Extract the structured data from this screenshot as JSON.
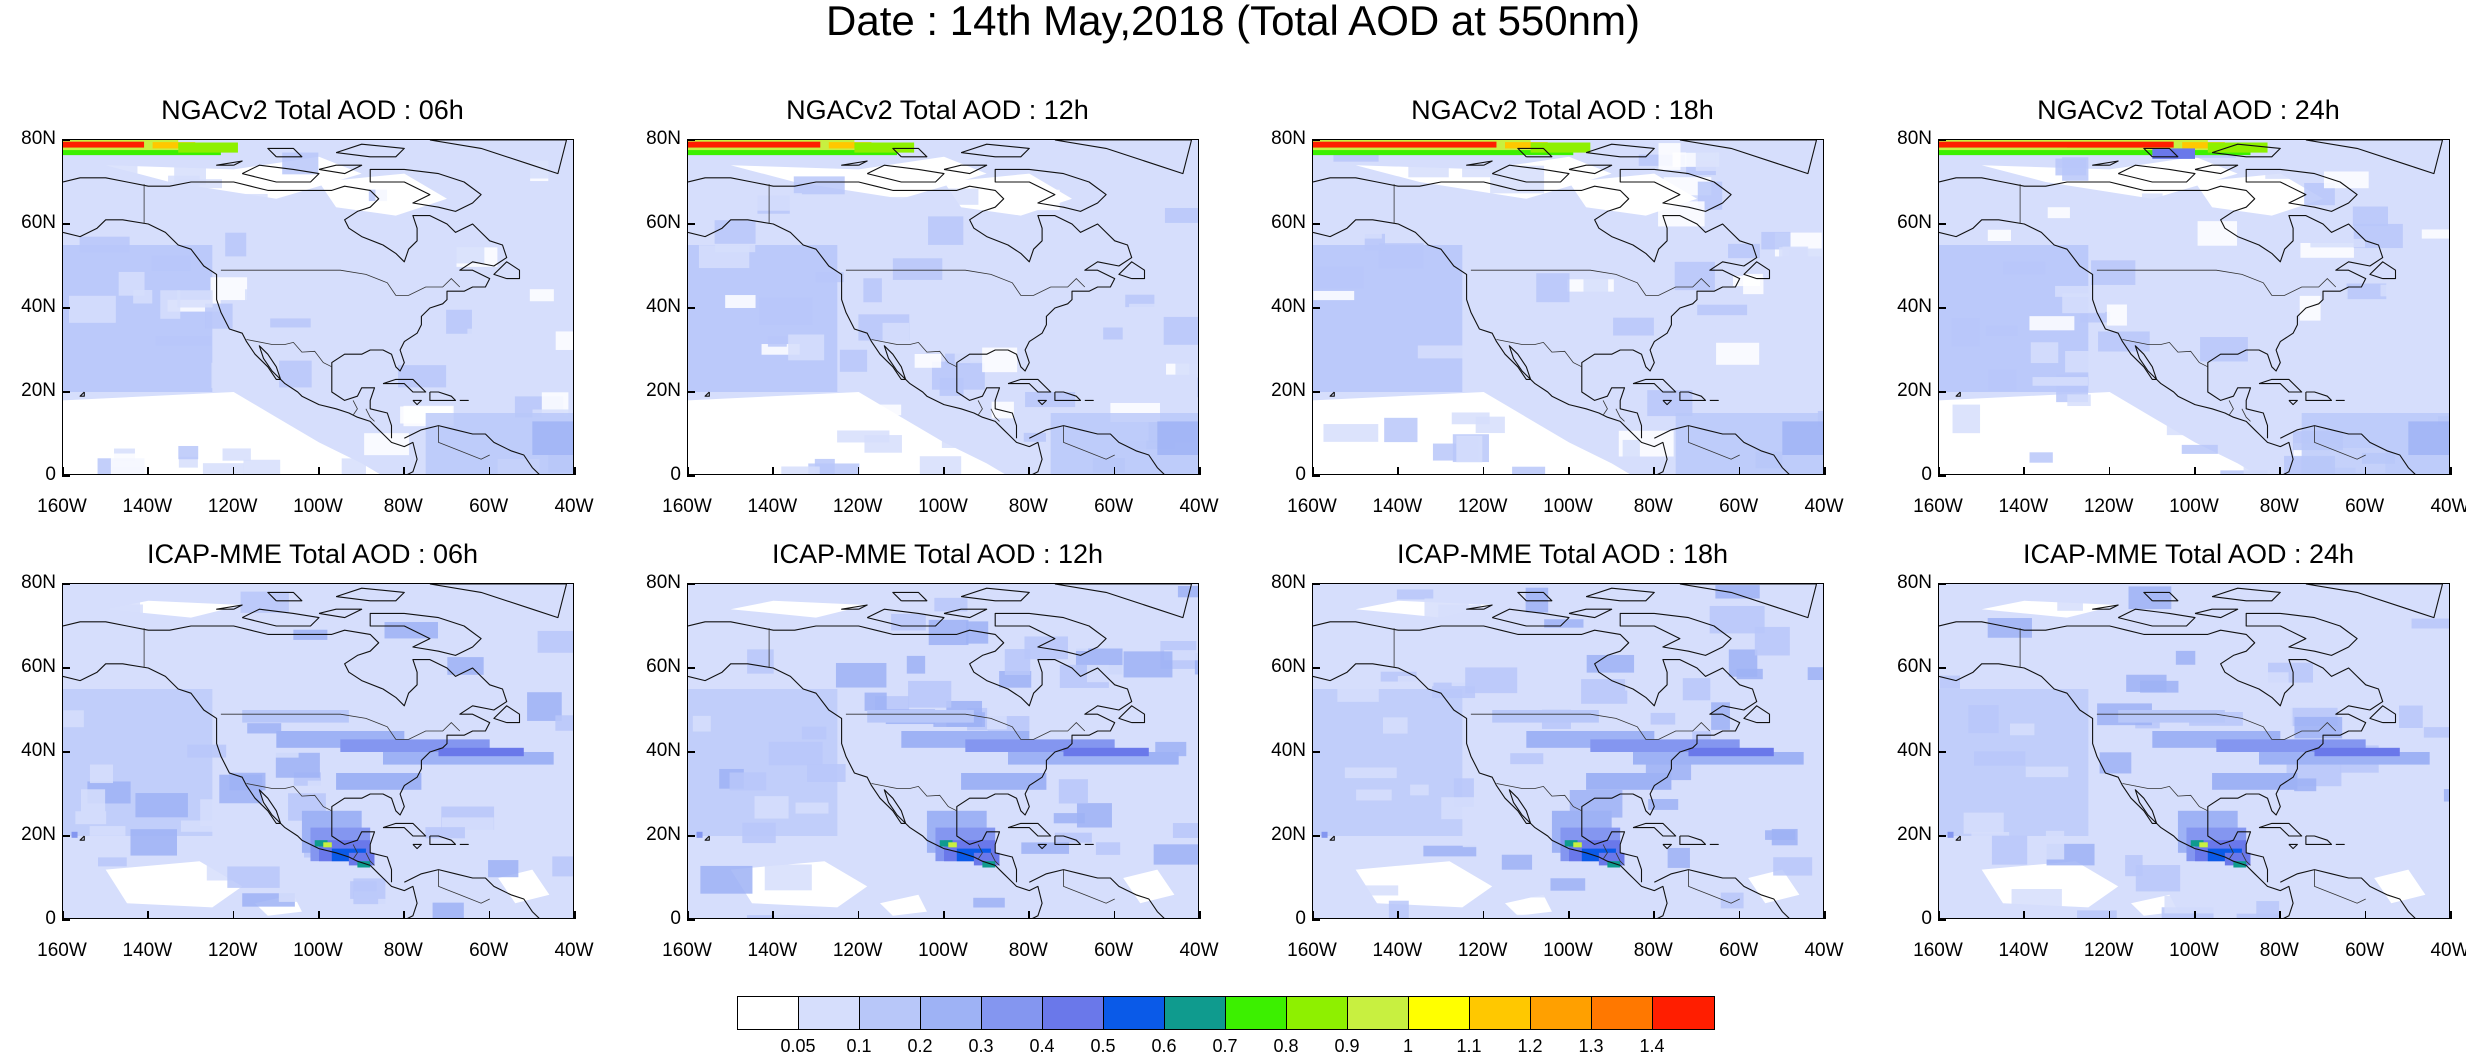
{
  "figure": {
    "title": "Date : 14th May,2018 (Total AOD at 550nm)"
  },
  "panels": [
    {
      "title": "NGACv2 Total AOD : 06h",
      "model": "ngac",
      "arctic_level": 1
    },
    {
      "title": "NGACv2 Total AOD : 12h",
      "model": "ngac",
      "arctic_level": 2
    },
    {
      "title": "NGACv2 Total AOD : 18h",
      "model": "ngac",
      "arctic_level": 3
    },
    {
      "title": "NGACv2 Total AOD : 24h",
      "model": "ngac",
      "arctic_level": 4
    },
    {
      "title": "ICAP-MME Total AOD : 06h",
      "model": "icap",
      "arctic_level": 0
    },
    {
      "title": "ICAP-MME Total AOD : 12h",
      "model": "icap",
      "arctic_level": 0
    },
    {
      "title": "ICAP-MME Total AOD : 18h",
      "model": "icap",
      "arctic_level": 0
    },
    {
      "title": "ICAP-MME Total AOD : 24h",
      "model": "icap",
      "arctic_level": 0
    }
  ],
  "axes": {
    "lat_labels": [
      "80N",
      "60N",
      "40N",
      "20N",
      "0"
    ],
    "lat_values": [
      80,
      60,
      40,
      20,
      0
    ],
    "lon_labels": [
      "160W",
      "140W",
      "120W",
      "100W",
      "80W",
      "60W",
      "40W"
    ],
    "lon_values": [
      -160,
      -140,
      -120,
      -100,
      -80,
      -60,
      -40
    ]
  },
  "colorbar": {
    "colors": [
      "#ffffff",
      "#d6defc",
      "#b8c7f9",
      "#9eb2f5",
      "#8496f0",
      "#6a78ea",
      "#0a5ae8",
      "#0f9b8e",
      "#3cf000",
      "#8ef000",
      "#c8f040",
      "#ffff00",
      "#ffc800",
      "#ffa000",
      "#ff7800",
      "#ff1e00"
    ],
    "labels": [
      "0.05",
      "0.1",
      "0.2",
      "0.3",
      "0.4",
      "0.5",
      "0.6",
      "0.7",
      "0.8",
      "0.9",
      "1",
      "1.1",
      "1.2",
      "1.3",
      "1.4"
    ]
  }
}
